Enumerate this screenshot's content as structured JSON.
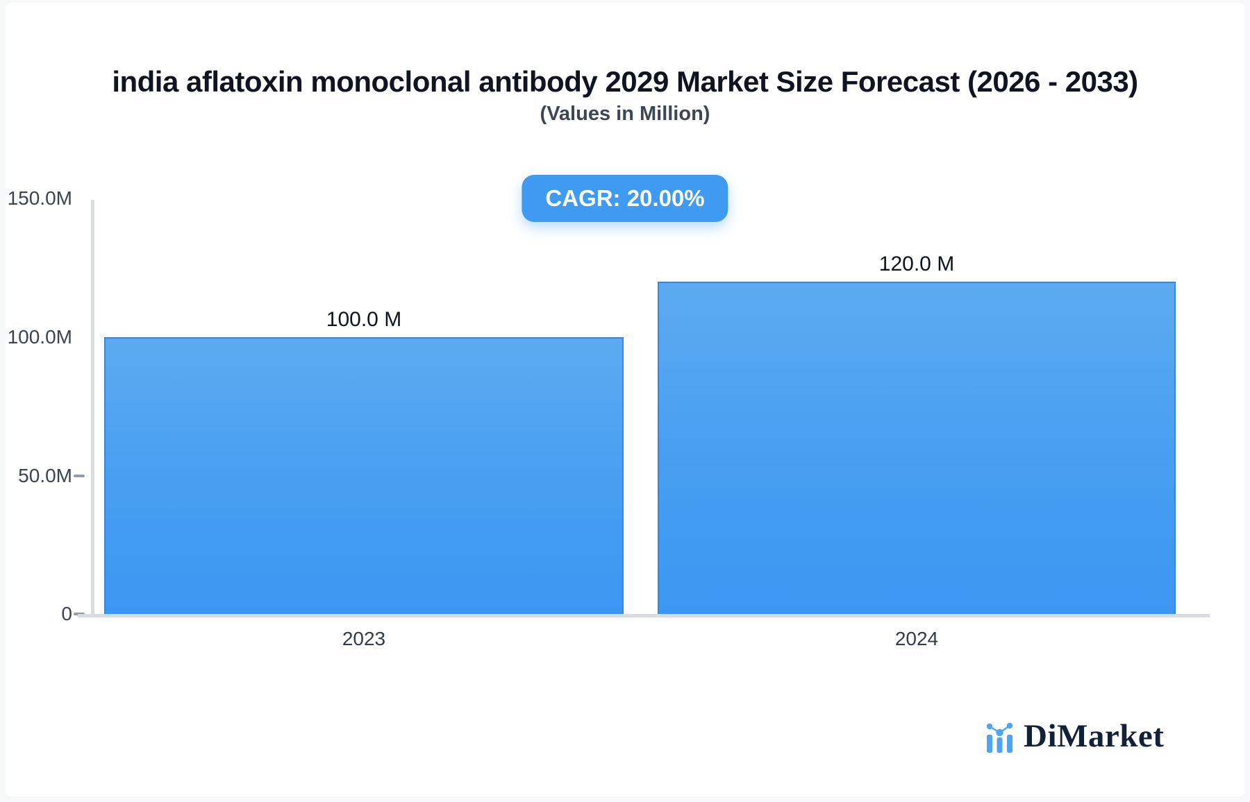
{
  "header": {
    "title": "india aflatoxin monoclonal antibody 2029 Market Size Forecast (2026 - 2033)",
    "subtitle": "(Values in Million)",
    "cagr_label": "CAGR: 20.00%"
  },
  "chart_data": {
    "type": "bar",
    "title": "india aflatoxin monoclonal antibody 2029 Market Size Forecast (2026 - 2033)",
    "subtitle": "(Values in Million)",
    "unit": "Million",
    "categories": [
      "2023",
      "2024"
    ],
    "values": [
      100.0,
      120.0
    ],
    "value_labels": [
      "100.0 M",
      "120.0 M"
    ],
    "cagr_percent": "20.00%",
    "ylim": [
      0,
      150
    ],
    "yticks": [
      0,
      50,
      100,
      150
    ],
    "ytick_labels_desc": [
      "150.0M",
      "100.0M",
      "50.0M",
      "0"
    ],
    "grid": false,
    "legend_position": "none",
    "bar_color_top": "#5CABF0",
    "bar_color_bottom": "#3B97F2",
    "bar_border_color": "#3A85D8",
    "axis_color": "#D9DCE2"
  },
  "footer": {
    "brand": "DiMarket",
    "brand_icon": "dimarket-logo-icon"
  },
  "colors": {
    "accent_blue": "#3F9BF1",
    "page_bg": "#F7F8FA",
    "card_bg": "#FFFFFF",
    "title_text": "#101420",
    "subtitle_text": "#3D4653",
    "tick_text": "#3A4350"
  }
}
